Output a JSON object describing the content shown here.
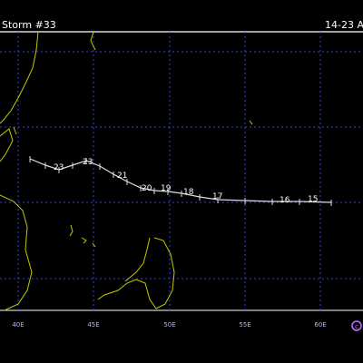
{
  "header": {
    "title": "Storm #33",
    "dates": "14-23 A"
  },
  "track": {
    "labels": [
      "23",
      "23",
      "21",
      "20",
      "19",
      "18",
      "17",
      "16",
      "15"
    ]
  },
  "axis": {
    "labels": [
      "40E",
      "45E",
      "50E",
      "55E",
      "60E"
    ]
  }
}
